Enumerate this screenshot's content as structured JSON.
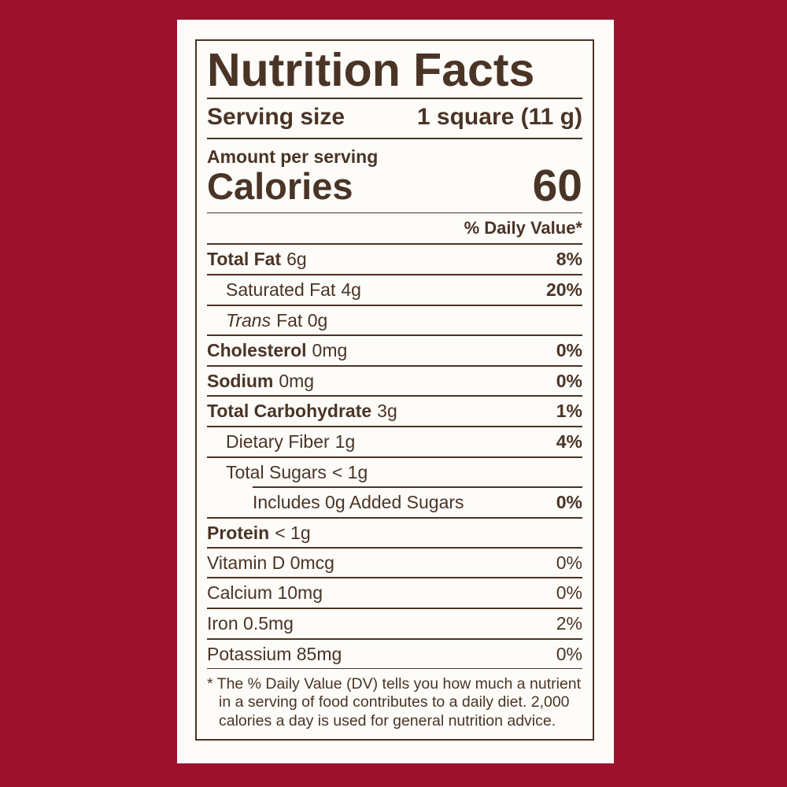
{
  "colors": {
    "background": "#9c122d",
    "ink": "#4a3426",
    "card": "#fdfcf9"
  },
  "label": {
    "title": "Nutrition Facts",
    "serving_size_label": "Serving size",
    "serving_size_value": "1 square (11 g)",
    "amount_per_serving": "Amount per serving",
    "calories_label": "Calories",
    "calories_value": "60",
    "daily_value_header": "% Daily Value*",
    "nutrients": [
      {
        "name": "Total Fat",
        "amount": "6g",
        "percent": "8%"
      },
      {
        "name": "Saturated Fat",
        "amount": "4g",
        "percent": "20%"
      },
      {
        "name_italic": "Trans",
        "amount": "Fat 0g",
        "percent": ""
      },
      {
        "name": "Cholesterol",
        "amount": "0mg",
        "percent": "0%"
      },
      {
        "name": "Sodium",
        "amount": "0mg",
        "percent": "0%"
      },
      {
        "name": "Total Carbohydrate",
        "amount": "3g",
        "percent": "1%"
      },
      {
        "name": "Dietary Fiber",
        "amount": "1g",
        "percent": "4%"
      },
      {
        "name": "Total Sugars",
        "amount": "< 1g",
        "percent": ""
      },
      {
        "name": "Includes 0g Added Sugars",
        "amount": "",
        "percent": "0%"
      },
      {
        "name": "Protein",
        "amount": "< 1g",
        "percent": ""
      }
    ],
    "vitamins": [
      {
        "name": "Vitamin D 0mcg",
        "percent": "0%"
      },
      {
        "name": "Calcium 10mg",
        "percent": "0%"
      },
      {
        "name": "Iron 0.5mg",
        "percent": "2%"
      },
      {
        "name": "Potassium 85mg",
        "percent": "0%"
      }
    ],
    "footnote": "* The % Daily Value (DV) tells you how much a nutrient in a serving of food contributes to a daily diet. 2,000 calories a day is used for general nutrition advice."
  }
}
